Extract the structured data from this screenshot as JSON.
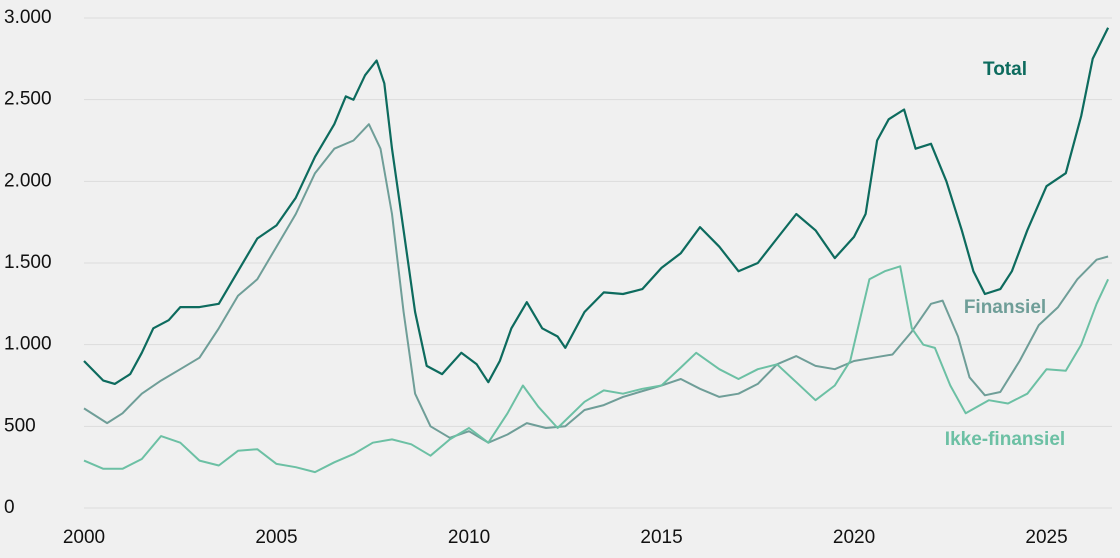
{
  "chart_data": {
    "type": "line",
    "xlim": [
      2000,
      2026.7
    ],
    "xticks": [
      2000,
      2005,
      2010,
      2015,
      2020,
      2025
    ],
    "ylim": [
      0,
      3000
    ],
    "yticks": [
      0,
      500,
      {
        "value": 1000,
        "label": "1.000"
      },
      {
        "value": 1500,
        "label": "1.500"
      },
      {
        "value": 2000,
        "label": "2.000"
      },
      {
        "value": 2500,
        "label": "2.500"
      },
      {
        "value": 3000,
        "label": "3.000"
      }
    ],
    "grid": true,
    "series": [
      {
        "name": "Total",
        "color": "#0d6b5e",
        "x": [
          2000,
          2000.5,
          2000.8,
          2001.2,
          2001.5,
          2001.8,
          2002.2,
          2002.5,
          2003,
          2003.5,
          2004,
          2004.5,
          2005,
          2005.5,
          2006,
          2006.5,
          2006.8,
          2007,
          2007.3,
          2007.6,
          2007.8,
          2008,
          2008.3,
          2008.6,
          2008.9,
          2009.3,
          2009.8,
          2010.2,
          2010.5,
          2010.8,
          2011.1,
          2011.5,
          2011.9,
          2012.3,
          2012.5,
          2013,
          2013.5,
          2014,
          2014.5,
          2015,
          2015.5,
          2016,
          2016.5,
          2017,
          2017.5,
          2018,
          2018.5,
          2019,
          2019.5,
          2020,
          2020.3,
          2020.6,
          2020.9,
          2021.3,
          2021.6,
          2022,
          2022.4,
          2022.8,
          2023.1,
          2023.4,
          2023.8,
          2024.1,
          2024.5,
          2025,
          2025.5,
          2025.9,
          2026.2,
          2026.6
        ],
        "values": [
          900,
          780,
          760,
          820,
          950,
          1100,
          1150,
          1230,
          1230,
          1250,
          1450,
          1650,
          1730,
          1900,
          2150,
          2350,
          2520,
          2500,
          2650,
          2740,
          2600,
          2200,
          1700,
          1200,
          870,
          820,
          950,
          880,
          770,
          900,
          1100,
          1260,
          1100,
          1050,
          980,
          1200,
          1320,
          1310,
          1340,
          1470,
          1560,
          1720,
          1600,
          1450,
          1500,
          1650,
          1800,
          1700,
          1530,
          1660,
          1800,
          2250,
          2380,
          2440,
          2200,
          2230,
          2000,
          1700,
          1450,
          1310,
          1340,
          1450,
          1700,
          1970,
          2050,
          2400,
          2750,
          2940
        ]
      },
      {
        "name": "Finansiel",
        "color": "#6f9e98",
        "x": [
          2000,
          2000.6,
          2001,
          2001.5,
          2002,
          2002.5,
          2003,
          2003.5,
          2004,
          2004.5,
          2005,
          2005.5,
          2006,
          2006.5,
          2007,
          2007.4,
          2007.7,
          2008,
          2008.3,
          2008.6,
          2009,
          2009.5,
          2010,
          2010.5,
          2011,
          2011.5,
          2012,
          2012.5,
          2013,
          2013.5,
          2014,
          2015,
          2015.5,
          2016,
          2016.5,
          2017,
          2017.5,
          2018,
          2018.5,
          2019,
          2019.5,
          2020,
          2020.5,
          2021,
          2021.5,
          2022,
          2022.3,
          2022.7,
          2023,
          2023.4,
          2023.8,
          2024.3,
          2024.8,
          2025.3,
          2025.8,
          2026.3,
          2026.6
        ],
        "values": [
          610,
          520,
          580,
          700,
          780,
          850,
          920,
          1100,
          1300,
          1400,
          1600,
          1800,
          2050,
          2200,
          2250,
          2350,
          2200,
          1800,
          1200,
          700,
          500,
          430,
          470,
          400,
          450,
          520,
          490,
          500,
          600,
          630,
          680,
          750,
          790,
          730,
          680,
          700,
          760,
          880,
          930,
          870,
          850,
          900,
          920,
          940,
          1080,
          1250,
          1270,
          1050,
          800,
          690,
          710,
          900,
          1120,
          1230,
          1400,
          1520,
          1540
        ]
      },
      {
        "name": "Ikke-finansiel",
        "color": "#6cc0a4",
        "x": [
          2000,
          2000.5,
          2001,
          2001.5,
          2002,
          2002.5,
          2003,
          2003.5,
          2004,
          2004.5,
          2005,
          2005.5,
          2006,
          2006.5,
          2007,
          2007.5,
          2008,
          2008.5,
          2009,
          2009.5,
          2010,
          2010.5,
          2011,
          2011.4,
          2011.8,
          2012.3,
          2013,
          2013.5,
          2014,
          2014.5,
          2015,
          2015.5,
          2015.9,
          2016.5,
          2017,
          2017.5,
          2018,
          2018.5,
          2019,
          2019.5,
          2019.9,
          2020.2,
          2020.4,
          2020.8,
          2021.2,
          2021.5,
          2021.8,
          2022.1,
          2022.5,
          2022.9,
          2023.2,
          2023.5,
          2024,
          2024.5,
          2025,
          2025.5,
          2025.9,
          2026.3,
          2026.6
        ],
        "values": [
          290,
          240,
          240,
          300,
          440,
          400,
          290,
          260,
          350,
          360,
          270,
          250,
          220,
          280,
          330,
          400,
          420,
          390,
          320,
          420,
          490,
          400,
          580,
          750,
          620,
          490,
          650,
          720,
          700,
          730,
          750,
          860,
          950,
          850,
          790,
          850,
          880,
          770,
          660,
          750,
          900,
          1200,
          1400,
          1450,
          1480,
          1100,
          1000,
          980,
          750,
          580,
          620,
          660,
          640,
          700,
          850,
          840,
          1000,
          1250,
          1400
        ]
      }
    ]
  }
}
